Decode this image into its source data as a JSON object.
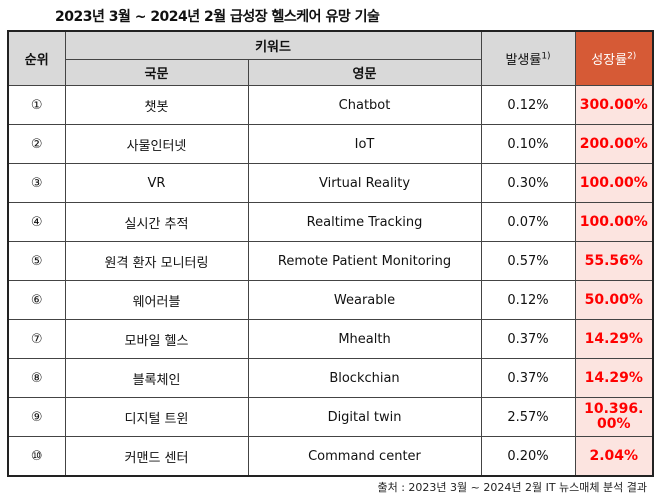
{
  "title": "2023년 3월 ~ 2024년 2월 급성장 헬스케어 유망 기술",
  "headers": {
    "rank": "순위",
    "keyword": "키워드",
    "korean": "국문",
    "english": "영문",
    "occurrence": "발생률",
    "occurrence_note": "1)",
    "growth": "성장률",
    "growth_note": "2)"
  },
  "rows": [
    {
      "rank": "①",
      "ko": "챗봇",
      "en": "Chatbot",
      "occ": "0.12%",
      "growth": "300.00%"
    },
    {
      "rank": "②",
      "ko": "사물인터넷",
      "en": "IoT",
      "occ": "0.10%",
      "growth": "200.00%"
    },
    {
      "rank": "③",
      "ko": "VR",
      "en": "Virtual Reality",
      "occ": "0.30%",
      "growth": "100.00%"
    },
    {
      "rank": "④",
      "ko": "실시간 추적",
      "en": "Realtime Tracking",
      "occ": "0.07%",
      "growth": "100.00%"
    },
    {
      "rank": "⑤",
      "ko": "원격 환자 모니터링",
      "en": "Remote Patient Monitoring",
      "occ": "0.57%",
      "growth": "55.56%"
    },
    {
      "rank": "⑥",
      "ko": "웨어러블",
      "en": "Wearable",
      "occ": "0.12%",
      "growth": "50.00%"
    },
    {
      "rank": "⑦",
      "ko": "모바일 헬스",
      "en": "Mhealth",
      "occ": "0.37%",
      "growth": "14.29%"
    },
    {
      "rank": "⑧",
      "ko": "블록체인",
      "en": "Blockchian",
      "occ": "0.37%",
      "growth": "14.29%"
    },
    {
      "rank": "⑨",
      "ko": "디지털 트윈",
      "en": "Digital twin",
      "occ": "2.57%",
      "growth": "10.396.00%"
    },
    {
      "rank": "⑩",
      "ko": "커맨드 센터",
      "en": "Command center",
      "occ": "0.20%",
      "growth": "2.04%"
    }
  ],
  "footer": "출처 : 2023년 3월 ~ 2024년 2월 IT 뉴스매체 분석 결과",
  "colors": {
    "header_bg": "#d9d9d9",
    "growth_header": "#d65a36",
    "growth_cell_bg": "#fce4e0",
    "growth_text": "#ff0000"
  }
}
